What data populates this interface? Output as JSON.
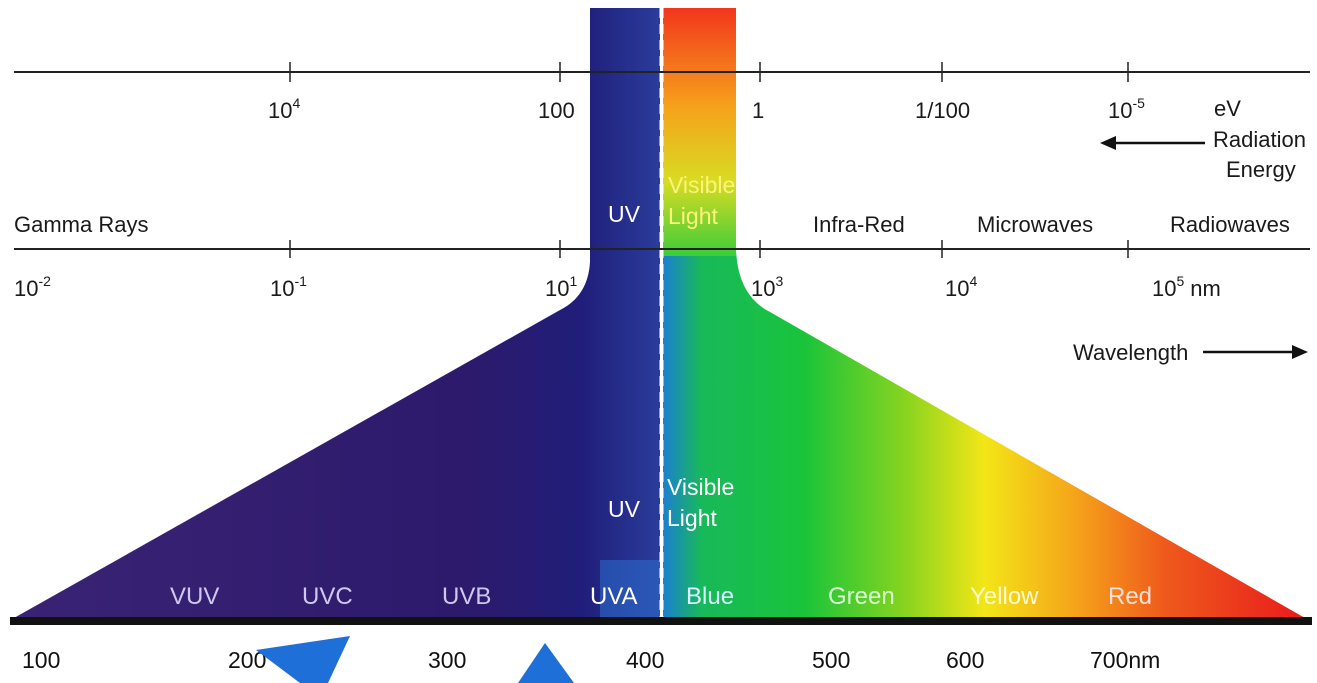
{
  "energy_scale": {
    "ticks": [
      "10",
      "100",
      "1",
      "1/100",
      "10"
    ],
    "tick_4_exp": "4",
    "tick_5_exp": "-5",
    "unit": "eV",
    "label_line1": "Radiation",
    "label_line2": "Energy"
  },
  "regions": {
    "gamma": "Gamma Rays",
    "uv": "UV",
    "visible_line1": "Visible",
    "visible_line2": "Light",
    "infrared": "Infra-Red",
    "microwaves": "Microwaves",
    "radiowaves": "Radiowaves"
  },
  "wavelength_scale": {
    "base": "10",
    "exponents": [
      "-2",
      "-1",
      "1",
      "3",
      "4",
      "5"
    ],
    "unit": "nm",
    "label": "Wavelength"
  },
  "detail": {
    "uv": "UV",
    "visible_line1": "Visible",
    "visible_line2": "Light",
    "bands": [
      "VUV",
      "UVC",
      "UVB",
      "UVA",
      "Blue",
      "Green",
      "Yellow",
      "Red"
    ],
    "nm_ticks": [
      "100",
      "200",
      "300",
      "400",
      "500",
      "600",
      "700nm"
    ]
  },
  "colors": {
    "uv": "#2e1a6e",
    "accent_arrow": "#1f6fd8",
    "blue": "#1b7fd1",
    "green": "#19c43a",
    "yellow": "#f3e617",
    "orange": "#f08a1c",
    "red": "#e81b1b"
  }
}
